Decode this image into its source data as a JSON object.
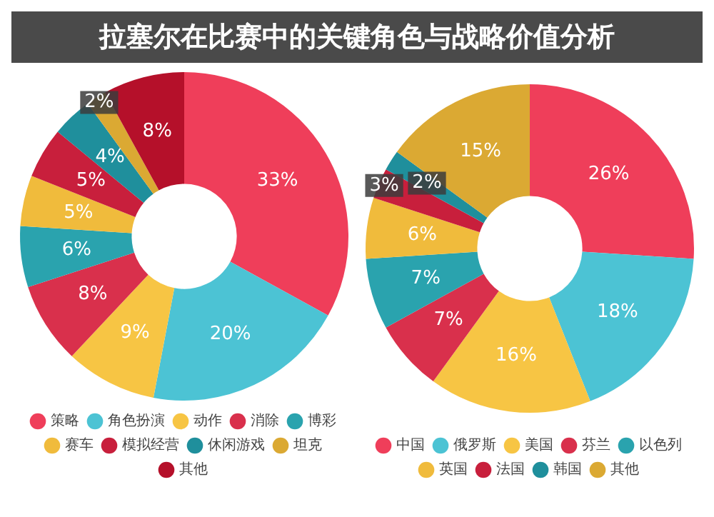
{
  "chart_data": [
    {
      "type": "donut",
      "title": "拉塞尔在比赛中的关键角色与战略价值分析",
      "categories": [
        "策略",
        "角色扮演",
        "动作",
        "消除",
        "博彩",
        "赛车",
        "模拟经营",
        "休闲游戏",
        "坦克",
        "其他"
      ],
      "values": [
        33,
        20,
        9,
        8,
        6,
        5,
        5,
        4,
        2,
        8
      ],
      "value_labels": [
        "33%",
        "20%",
        "9%",
        "8%",
        "6%",
        "5%",
        "5%",
        "4%",
        "2%",
        "8%"
      ],
      "colors": [
        "#ef3e5a",
        "#4cc3d4",
        "#f7c544",
        "#d9304c",
        "#2aa3ae",
        "#f0bb3c",
        "#c81f3c",
        "#1f8f9c",
        "#dba933",
        "#b5102a"
      ],
      "legend": "bottom"
    },
    {
      "type": "donut",
      "categories": [
        "中国",
        "俄罗斯",
        "美国",
        "芬兰",
        "以色列",
        "英国",
        "法国",
        "韩国",
        "其他"
      ],
      "values": [
        26,
        18,
        16,
        7,
        7,
        6,
        3,
        2,
        15
      ],
      "value_labels": [
        "26%",
        "18%",
        "16%",
        "7%",
        "7%",
        "6%",
        "3%",
        "2%",
        "15%"
      ],
      "colors": [
        "#ef3e5a",
        "#4cc3d4",
        "#f7c544",
        "#d9304c",
        "#2aa3ae",
        "#f0bb3c",
        "#c81f3c",
        "#1f8f9c",
        "#dba933"
      ],
      "legend": "bottom"
    }
  ]
}
